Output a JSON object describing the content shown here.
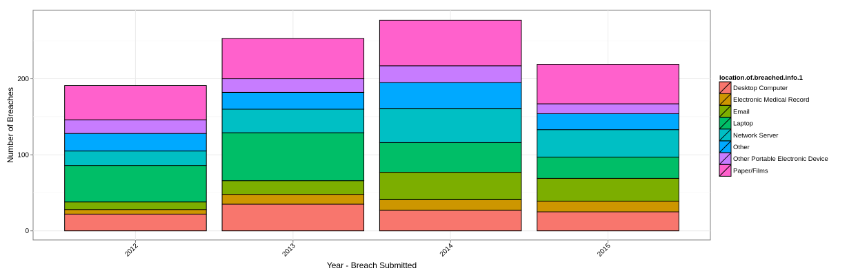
{
  "chart_data": {
    "type": "bar",
    "stacked": true,
    "xlabel": "Year - Breach Submitted",
    "ylabel": "Number of Breaches",
    "categories": [
      "2012",
      "2013",
      "2014",
      "2015"
    ],
    "yticks": [
      0,
      100,
      200
    ],
    "ylim": [
      -12,
      290
    ],
    "grid": true,
    "legend": {
      "title": "location.of.breached.info.1",
      "position": "right"
    },
    "series": [
      {
        "name": "Desktop Computer",
        "color": "#F8766D",
        "values": [
          22,
          35,
          27,
          25
        ]
      },
      {
        "name": "Electronic Medical Record",
        "color": "#CD9600",
        "values": [
          6,
          13,
          14,
          14
        ]
      },
      {
        "name": "Email",
        "color": "#7CAE00",
        "values": [
          10,
          18,
          36,
          30
        ]
      },
      {
        "name": "Laptop",
        "color": "#00BE67",
        "values": [
          48,
          63,
          39,
          28
        ]
      },
      {
        "name": "Network Server",
        "color": "#00BFC4",
        "values": [
          19,
          31,
          45,
          36
        ]
      },
      {
        "name": "Other",
        "color": "#00A9FF",
        "values": [
          23,
          22,
          34,
          21
        ]
      },
      {
        "name": "Other Portable Electronic Device",
        "color": "#C77CFF",
        "values": [
          18,
          18,
          22,
          13
        ]
      },
      {
        "name": "Paper/Films",
        "color": "#FF61CC",
        "values": [
          45,
          53,
          60,
          52
        ]
      }
    ]
  }
}
